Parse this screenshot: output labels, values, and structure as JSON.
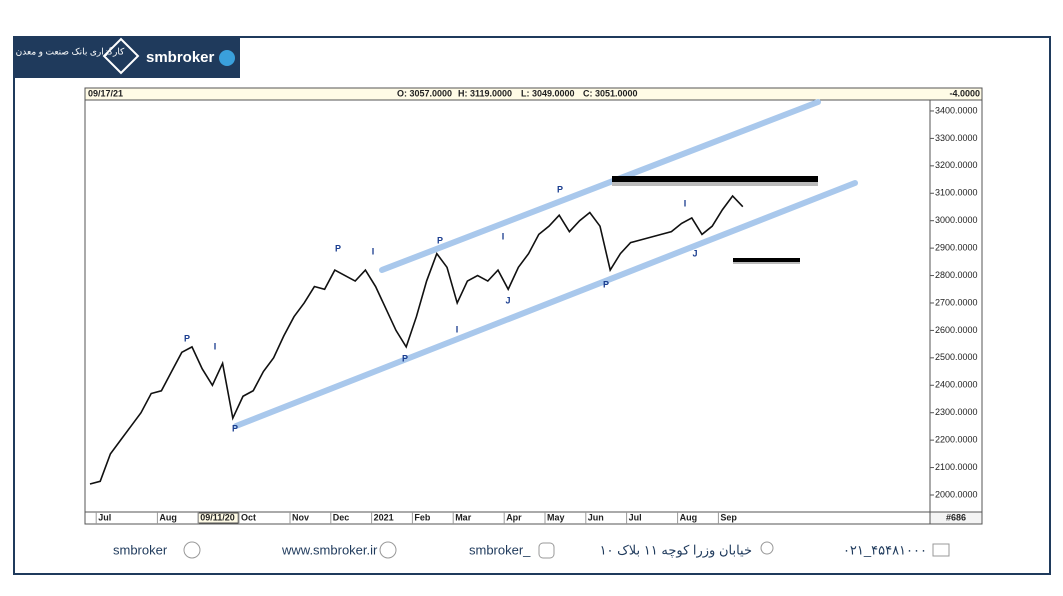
{
  "logo": {
    "name_fa": "کارگزاری بانک صنعت و معدن",
    "name": "smbroker"
  },
  "header": {
    "date": "09/17/21",
    "open": "O: 3057.0000",
    "high": "H: 3119.0000",
    "low": "L: 3049.0000",
    "close": "C: 3051.0000",
    "change": "-4.0000"
  },
  "chart_data": {
    "type": "line",
    "color": "#111111",
    "categories": [
      null,
      "Jul",
      null,
      null,
      null,
      null,
      null,
      "Aug",
      null,
      null,
      null,
      "09/11/20",
      null,
      null,
      null,
      "Oct",
      null,
      null,
      null,
      null,
      "Nov",
      null,
      null,
      null,
      "Dec",
      null,
      null,
      null,
      "2021",
      null,
      null,
      null,
      "Feb",
      null,
      null,
      null,
      "Mar",
      null,
      null,
      null,
      null,
      "Apr",
      null,
      null,
      null,
      "May",
      null,
      null,
      null,
      "Jun",
      null,
      null,
      null,
      "Jul",
      null,
      null,
      null,
      null,
      "Aug",
      null,
      null,
      null,
      "Sep",
      null,
      null
    ],
    "series": [
      {
        "name": "Close",
        "color": "#111111",
        "values": [
          2040,
          2050,
          2150,
          2200,
          2250,
          2300,
          2370,
          2380,
          2450,
          2520,
          2540,
          2460,
          2400,
          2480,
          2280,
          2360,
          2380,
          2450,
          2500,
          2580,
          2650,
          2700,
          2760,
          2750,
          2820,
          2800,
          2780,
          2820,
          2760,
          2680,
          2600,
          2540,
          2650,
          2780,
          2880,
          2830,
          2700,
          2780,
          2800,
          2780,
          2820,
          2750,
          2830,
          2880,
          2950,
          2980,
          3020,
          2960,
          3000,
          3030,
          2980,
          2820,
          2880,
          2920,
          2930,
          2940,
          2950,
          2960,
          2990,
          3010,
          2950,
          2980,
          3040,
          3090,
          3051
        ]
      }
    ],
    "ylim": [
      1938,
      3440
    ],
    "yticks": [
      {
        "value": 2000,
        "label": "2000.0000"
      },
      {
        "value": 2100,
        "label": "2100.0000"
      },
      {
        "value": 2200,
        "label": "2200.0000"
      },
      {
        "value": 2300,
        "label": "2300.0000"
      },
      {
        "value": 2400,
        "label": "2400.0000"
      },
      {
        "value": 2500,
        "label": "2500.0000"
      },
      {
        "value": 2600,
        "label": "2600.0000"
      },
      {
        "value": 2700,
        "label": "2700.0000"
      },
      {
        "value": 2800,
        "label": "2800.0000"
      },
      {
        "value": 2900,
        "label": "2900.0000"
      },
      {
        "value": 3000,
        "label": "3000.0000"
      },
      {
        "value": 3100,
        "label": "3100.0000"
      },
      {
        "value": 3200,
        "label": "3200.0000"
      },
      {
        "value": 3300,
        "label": "3300.0000"
      },
      {
        "value": 3400,
        "label": "3400.0000"
      }
    ],
    "wave_labels": [
      "P",
      "I",
      "P",
      "P",
      "I",
      "P",
      "P",
      "I",
      "I",
      "J",
      "P",
      "P",
      "I",
      "J"
    ],
    "bar_count": "#686"
  },
  "footer": {
    "telegram": "smbroker",
    "website": "www.smbroker.ir",
    "instagram": "smbroker_",
    "address": "خیابان وزرا کوچه ۱۱ بلاک ۱۰",
    "phone": "۰۲۱_۴۵۴۸۱۰۰۰"
  }
}
